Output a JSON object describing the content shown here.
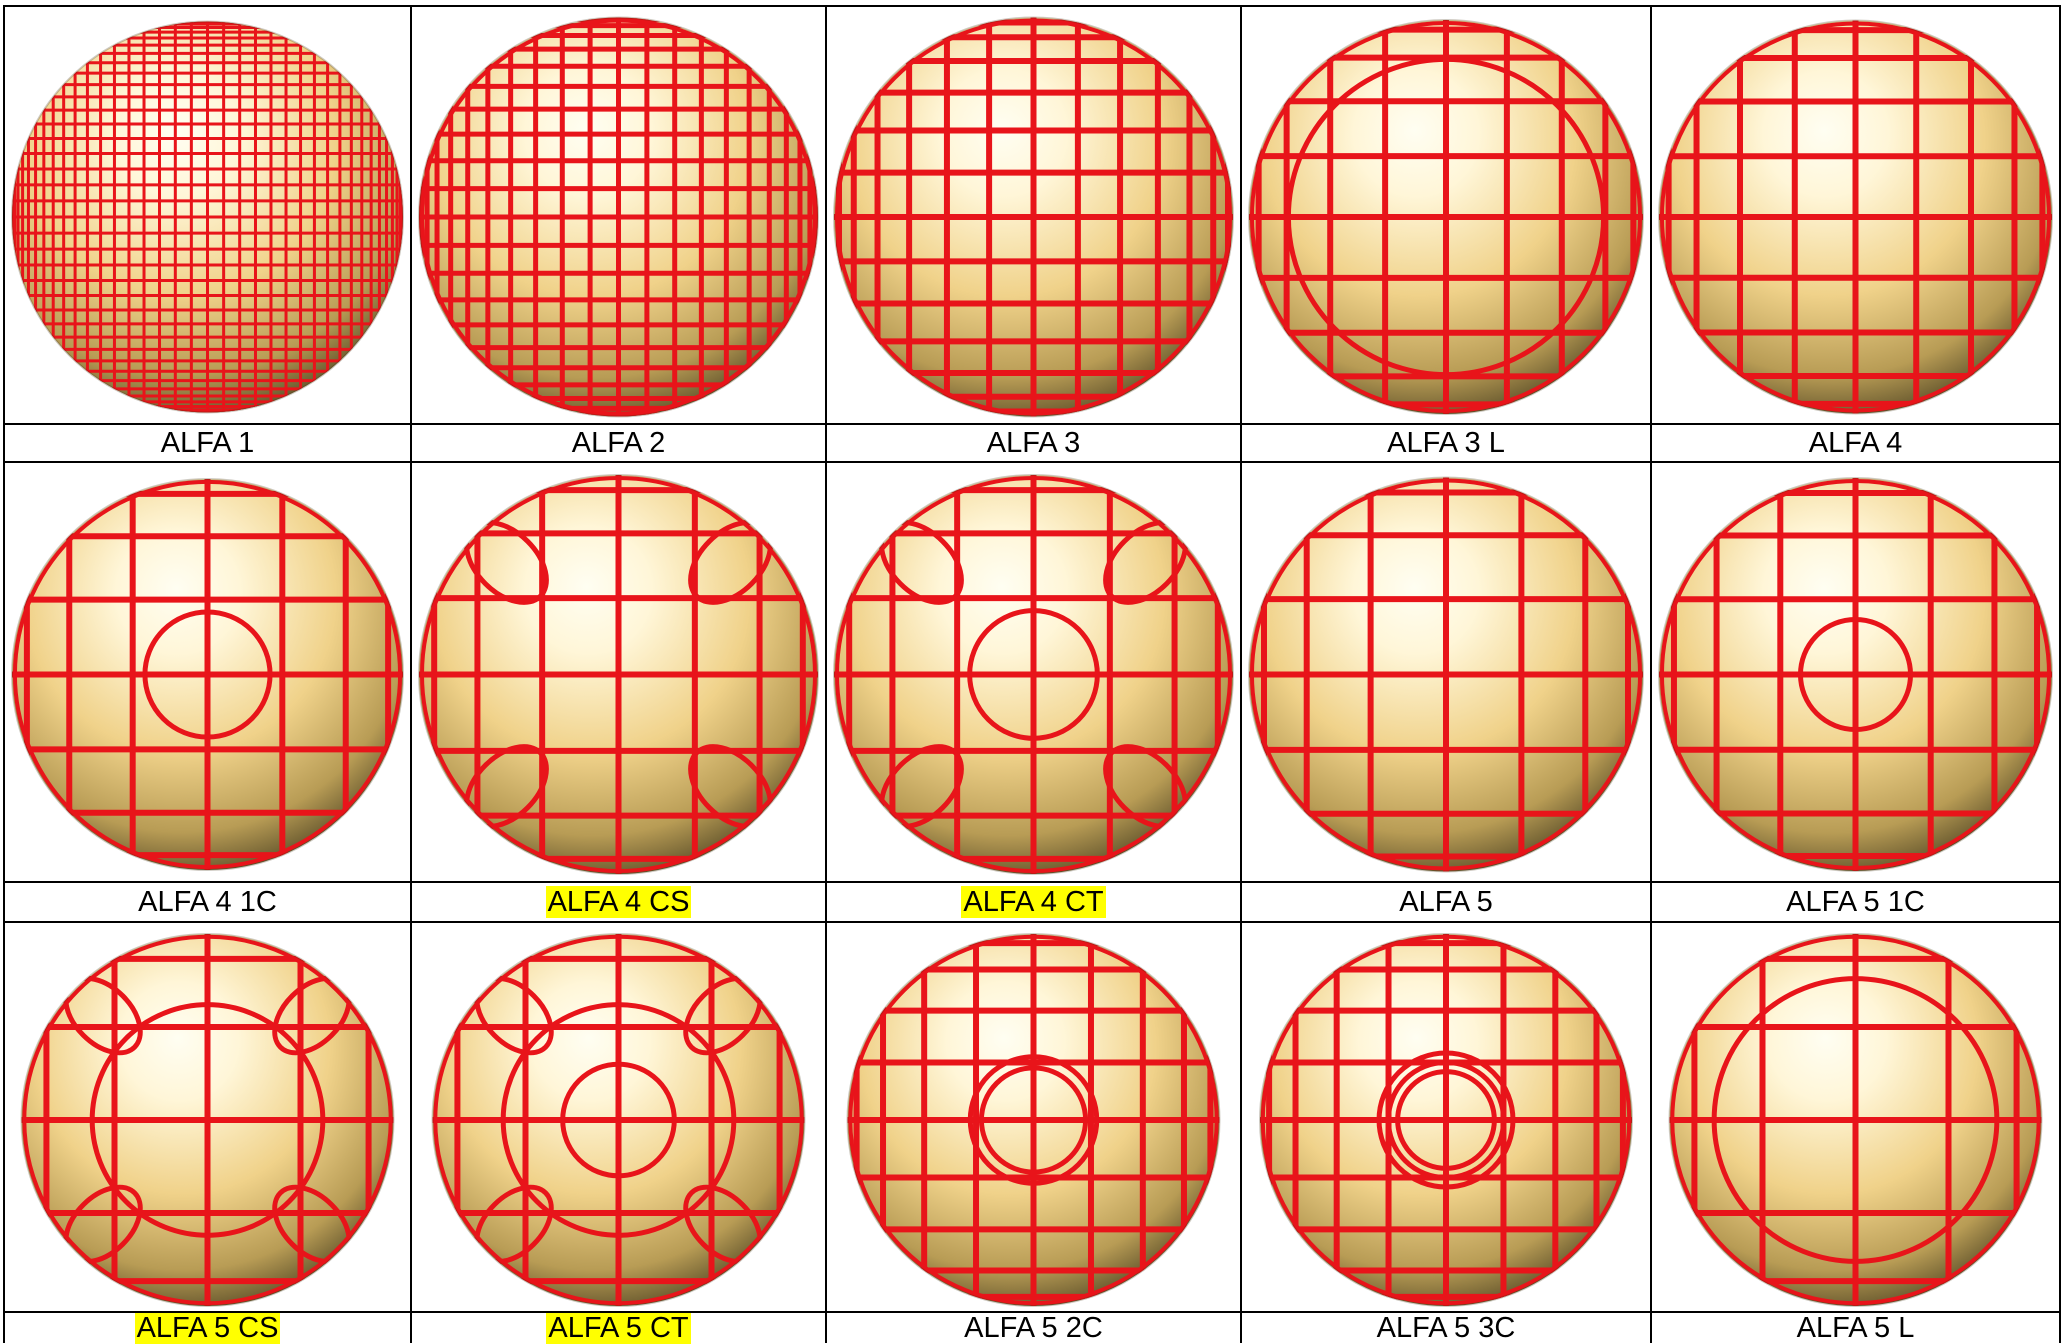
{
  "colors": {
    "line_red": "#e8141a",
    "sphere_light": "#fffef2",
    "sphere_mid": "#f0d28a",
    "sphere_dark": "#544825",
    "highlight": "#ffff00",
    "border": "#000000"
  },
  "rows": [
    {
      "cells": [
        {
          "label": "ALFA 1",
          "highlight": false,
          "pattern": {
            "v": 38,
            "h": 38,
            "rings": [],
            "corners": "none",
            "big": false
          }
        },
        {
          "label": "ALFA 2",
          "highlight": false,
          "pattern": {
            "v": 22,
            "h": 22,
            "rings": [],
            "corners": "none",
            "big": true
          }
        },
        {
          "label": "ALFA 3",
          "highlight": false,
          "pattern": {
            "v": 14,
            "h": 14,
            "rings": [],
            "corners": "none",
            "big": true
          }
        },
        {
          "label": "ALFA 3 L",
          "highlight": false,
          "pattern": {
            "v": 10,
            "h": 10,
            "rings": [
              0.8
            ],
            "corners": "none",
            "big": true
          }
        },
        {
          "label": "ALFA 4",
          "highlight": false,
          "pattern": {
            "v": 10,
            "h": 10,
            "rings": [],
            "corners": "none",
            "big": true
          }
        }
      ]
    },
    {
      "cells": [
        {
          "label": "ALFA 4 1C",
          "highlight": false,
          "pattern": {
            "v": 8,
            "h": 8,
            "rings": [
              0.32
            ],
            "corners": "none",
            "big": true
          }
        },
        {
          "label": "ALFA 4 CS",
          "highlight": true,
          "pattern": {
            "v": 8,
            "h": 8,
            "rings": [],
            "corners": "square",
            "big": true
          }
        },
        {
          "label": "ALFA 4 CT",
          "highlight": true,
          "pattern": {
            "v": 8,
            "h": 8,
            "rings": [
              0.32
            ],
            "corners": "square",
            "big": true
          }
        },
        {
          "label": "ALFA 5",
          "highlight": false,
          "pattern": {
            "v": 8,
            "h": 8,
            "rings": [],
            "corners": "none",
            "big": true
          }
        },
        {
          "label": "ALFA 5 1C",
          "highlight": false,
          "pattern": {
            "v": 8,
            "h": 8,
            "rings": [
              0.28
            ],
            "corners": "none",
            "big": true
          }
        }
      ]
    },
    {
      "cells": [
        {
          "label": "ALFA 5 CS",
          "highlight": true,
          "pattern": {
            "v": 6,
            "h": 6,
            "rings": [
              0.62
            ],
            "corners": "round",
            "big": true
          }
        },
        {
          "label": "ALFA 5 CT",
          "highlight": true,
          "pattern": {
            "v": 6,
            "h": 6,
            "rings": [
              0.62,
              0.3
            ],
            "corners": "round",
            "big": true
          }
        },
        {
          "label": "ALFA 5 2C",
          "highlight": false,
          "pattern": {
            "v": 10,
            "h": 10,
            "rings": [
              0.34,
              0.28
            ],
            "corners": "none",
            "big": true
          }
        },
        {
          "label": "ALFA 5 3C",
          "highlight": false,
          "pattern": {
            "v": 10,
            "h": 10,
            "rings": [
              0.36,
              0.31,
              0.26
            ],
            "corners": "none",
            "big": true
          }
        },
        {
          "label": "ALFA 5 L",
          "highlight": false,
          "pattern": {
            "v": 6,
            "h": 6,
            "rings": [
              0.76
            ],
            "corners": "none",
            "big": true
          }
        }
      ]
    }
  ]
}
